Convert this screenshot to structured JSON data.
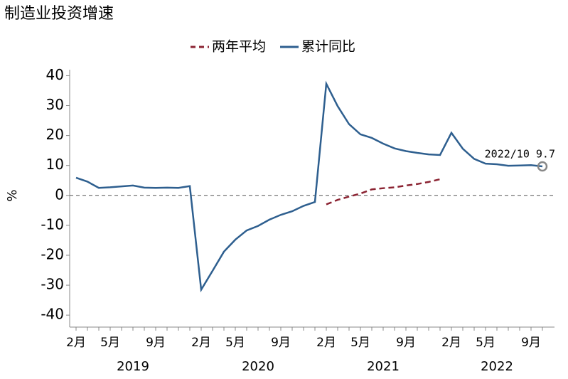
{
  "chart_data": {
    "type": "line",
    "title": "制造业投资增速",
    "y_label": "%",
    "categories": [
      "2月",
      null,
      null,
      "5月",
      null,
      null,
      null,
      "9月",
      null,
      null,
      null,
      "2月",
      null,
      null,
      "5月",
      null,
      null,
      null,
      "9月",
      null,
      null,
      null,
      "2月",
      null,
      null,
      "5月",
      null,
      null,
      null,
      "9月",
      null,
      null,
      null,
      "2月",
      null,
      null,
      "5月",
      null,
      null,
      null,
      "9月",
      null
    ],
    "x_groups": [
      "2019",
      "2020",
      "2021",
      "2022"
    ],
    "series": [
      {
        "name": "两年平均",
        "color": "#8b2332",
        "dashed": true,
        "values": [
          null,
          null,
          null,
          null,
          null,
          null,
          null,
          null,
          null,
          null,
          null,
          null,
          null,
          null,
          null,
          null,
          null,
          null,
          null,
          null,
          null,
          null,
          -3.0,
          -1.5,
          -0.4,
          0.6,
          2.0,
          2.4,
          2.7,
          3.3,
          3.8,
          4.5,
          5.4,
          null,
          null,
          null,
          null,
          null,
          null,
          null,
          null,
          null
        ]
      },
      {
        "name": "累计同比",
        "color": "#2e5f8f",
        "dashed": false,
        "values": [
          5.9,
          4.6,
          2.5,
          2.7,
          3.0,
          3.3,
          2.6,
          2.5,
          2.6,
          2.5,
          3.1,
          -31.5,
          -25.2,
          -18.8,
          -14.8,
          -11.7,
          -10.2,
          -8.1,
          -6.5,
          -5.3,
          -3.5,
          -2.2,
          37.3,
          29.8,
          23.8,
          20.4,
          19.2,
          17.3,
          15.7,
          14.8,
          14.2,
          13.7,
          13.5,
          20.9,
          15.6,
          12.2,
          10.6,
          10.4,
          9.9,
          10.0,
          10.1,
          9.7
        ]
      }
    ],
    "annotation": "2022/10 9.7",
    "ylim": [
      -44,
      42
    ],
    "yticks": [
      -40,
      -30,
      -20,
      -10,
      0,
      10,
      20,
      30,
      40
    ],
    "zero_line": true
  }
}
